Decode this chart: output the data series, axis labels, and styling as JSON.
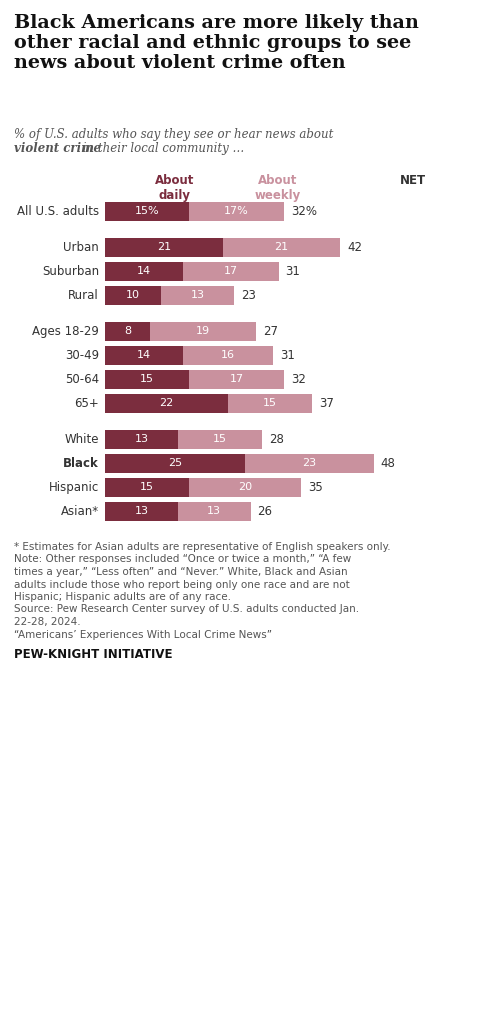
{
  "title": "Black Americans are more likely than\nother racial and ethnic groups to see\nnews about violent crime often",
  "col_label_daily": "About\ndaily",
  "col_label_weekly": "About\nweekly",
  "col_label_net": "NET",
  "color_daily": "#7b2d3e",
  "color_weekly": "#c9919e",
  "groups": [
    {
      "label": "All U.S. adults",
      "daily": 15,
      "weekly": 17,
      "net": "32%",
      "daily_label": "15%",
      "weekly_label": "17%",
      "separator": false,
      "bold": false,
      "allus": true
    },
    {
      "label": "",
      "daily": 0,
      "weekly": 0,
      "net": "",
      "daily_label": "",
      "weekly_label": "",
      "separator": true,
      "bold": false,
      "allus": false
    },
    {
      "label": "Urban",
      "daily": 21,
      "weekly": 21,
      "net": "42",
      "daily_label": "21",
      "weekly_label": "21",
      "separator": false,
      "bold": false,
      "allus": false
    },
    {
      "label": "Suburban",
      "daily": 14,
      "weekly": 17,
      "net": "31",
      "daily_label": "14",
      "weekly_label": "17",
      "separator": false,
      "bold": false,
      "allus": false
    },
    {
      "label": "Rural",
      "daily": 10,
      "weekly": 13,
      "net": "23",
      "daily_label": "10",
      "weekly_label": "13",
      "separator": false,
      "bold": false,
      "allus": false
    },
    {
      "label": "",
      "daily": 0,
      "weekly": 0,
      "net": "",
      "daily_label": "",
      "weekly_label": "",
      "separator": true,
      "bold": false,
      "allus": false
    },
    {
      "label": "Ages 18-29",
      "daily": 8,
      "weekly": 19,
      "net": "27",
      "daily_label": "8",
      "weekly_label": "19",
      "separator": false,
      "bold": false,
      "allus": false
    },
    {
      "label": "30-49",
      "daily": 14,
      "weekly": 16,
      "net": "31",
      "daily_label": "14",
      "weekly_label": "16",
      "separator": false,
      "bold": false,
      "allus": false
    },
    {
      "label": "50-64",
      "daily": 15,
      "weekly": 17,
      "net": "32",
      "daily_label": "15",
      "weekly_label": "17",
      "separator": false,
      "bold": false,
      "allus": false
    },
    {
      "label": "65+",
      "daily": 22,
      "weekly": 15,
      "net": "37",
      "daily_label": "22",
      "weekly_label": "15",
      "separator": false,
      "bold": false,
      "allus": false
    },
    {
      "label": "",
      "daily": 0,
      "weekly": 0,
      "net": "",
      "daily_label": "",
      "weekly_label": "",
      "separator": true,
      "bold": false,
      "allus": false
    },
    {
      "label": "White",
      "daily": 13,
      "weekly": 15,
      "net": "28",
      "daily_label": "13",
      "weekly_label": "15",
      "separator": false,
      "bold": false,
      "allus": false
    },
    {
      "label": "Black",
      "daily": 25,
      "weekly": 23,
      "net": "48",
      "daily_label": "25",
      "weekly_label": "23",
      "separator": false,
      "bold": true,
      "allus": false
    },
    {
      "label": "Hispanic",
      "daily": 15,
      "weekly": 20,
      "net": "35",
      "daily_label": "15",
      "weekly_label": "20",
      "separator": false,
      "bold": false,
      "allus": false
    },
    {
      "label": "Asian*",
      "daily": 13,
      "weekly": 13,
      "net": "26",
      "daily_label": "13",
      "weekly_label": "13",
      "separator": false,
      "bold": false,
      "allus": false
    }
  ],
  "footnote_lines": [
    {
      "text": "* Estimates for Asian adults are representative of English speakers only.",
      "bold": false
    },
    {
      "text": "Note: Other responses included “Once or twice a month,” “A few",
      "bold": false
    },
    {
      "text": "times a year,” “Less often” and “Never.” White, Black and Asian",
      "bold": false
    },
    {
      "text": "adults include those who report being only one race and are not",
      "bold": false
    },
    {
      "text": "Hispanic; Hispanic adults are of any race.",
      "bold": false
    },
    {
      "text": "Source: Pew Research Center survey of U.S. adults conducted Jan.",
      "bold": false
    },
    {
      "text": "22-28, 2024.",
      "bold": false
    },
    {
      "text": "“Americans’ Experiences With Local Crime News”",
      "bold": false
    }
  ],
  "footer_bold": "PEW-KNIGHT INITIATIVE",
  "bg_color": "#ffffff"
}
